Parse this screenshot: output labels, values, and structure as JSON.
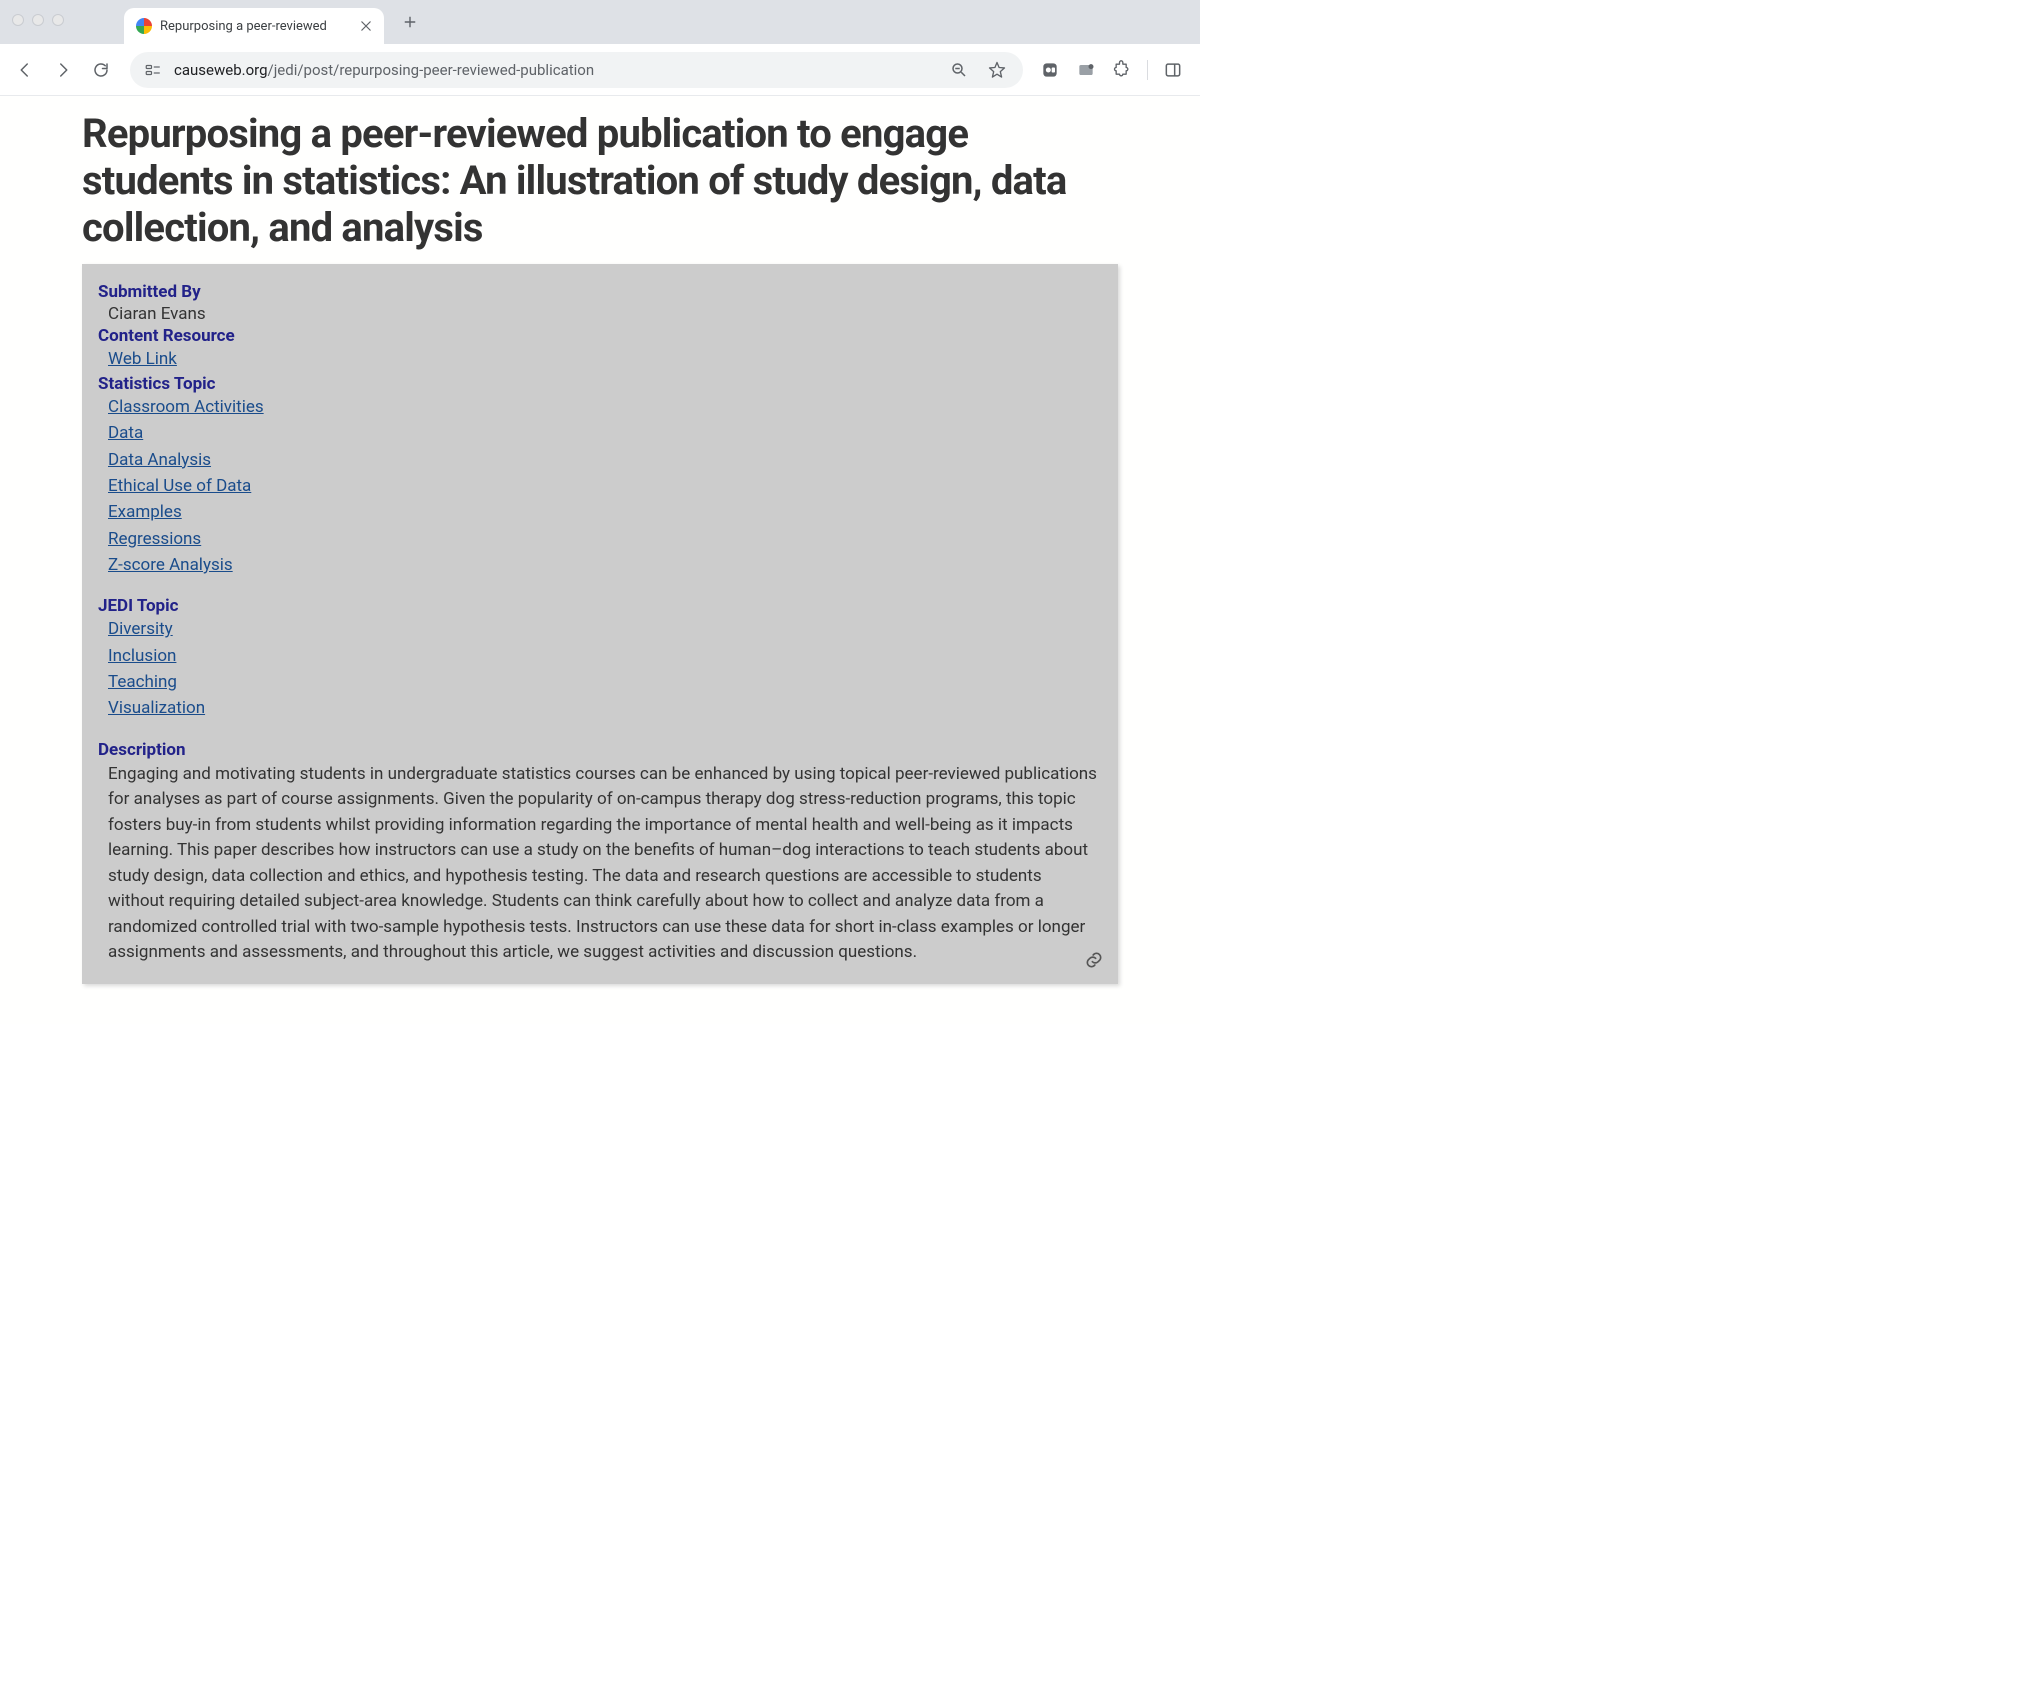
{
  "browser": {
    "tab_title": "Repurposing a peer-reviewed",
    "url_domain": "causeweb.org",
    "url_path": "/jedi/post/repurposing-peer-reviewed-publication"
  },
  "page": {
    "title": "Repurposing a peer-reviewed publication to engage students in statistics: An illustration of study design, data collection, and analysis",
    "submitted_by_label": "Submitted By",
    "submitted_by_value": "Ciaran Evans",
    "content_resource_label": "Content Resource",
    "content_resource_links": [
      "Web Link"
    ],
    "statistics_topic_label": "Statistics Topic",
    "statistics_topics": [
      "Classroom Activities",
      "Data",
      "Data Analysis",
      "Ethical Use of Data",
      "Examples",
      "Regressions",
      "Z-score Analysis"
    ],
    "jedi_topic_label": "JEDI Topic",
    "jedi_topics": [
      "Diversity",
      "Inclusion",
      "Teaching",
      "Visualization"
    ],
    "description_label": "Description",
    "description_text": "Engaging and motivating students in undergraduate statistics courses can be enhanced by using topical peer-reviewed publications for analyses as part of course assignments. Given the popularity of on-campus therapy dog stress-reduction programs, this topic fosters buy-in from students whilst providing information regarding the importance of mental health and well-being as it impacts learning. This paper describes how instructors can use a study on the benefits of human–dog interactions to teach students about study design, data collection and ethics, and hypothesis testing. The data and research questions are accessible to students without requiring detailed subject-area knowledge. Students can think carefully about how to collect and analyze data from a randomized controlled trial with two-sample hypothesis tests. Instructors can use these data for short in-class examples or longer assignments and assessments, and throughout this article, we suggest activities and discussion questions."
  },
  "colors": {
    "label_color": "#222289",
    "link_color": "#1a4c8b",
    "box_bg": "#cccccc",
    "title_color": "#333333"
  }
}
